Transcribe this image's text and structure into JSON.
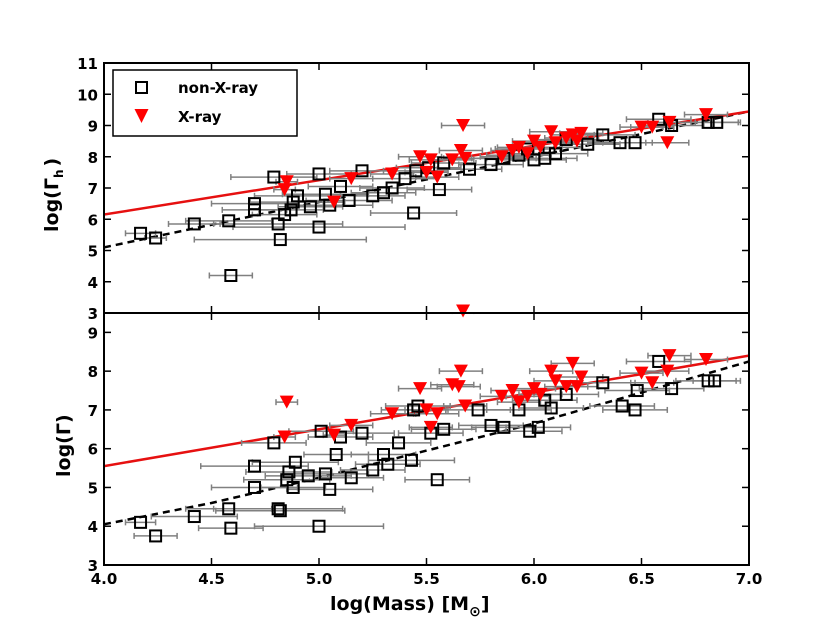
{
  "colors": {
    "xray": "#ff0000",
    "nonxray": "#000000",
    "errorbar": "#808080",
    "fit_nonxray": "#000000",
    "fit_xray": "#e61010"
  },
  "legend": {
    "placement": "upper-left of top panel",
    "entries": [
      {
        "label": "non-X-ray",
        "marker": "open-square"
      },
      {
        "label": "X-ray",
        "marker": "red-triangle-down"
      }
    ]
  },
  "chart_data": [
    {
      "type": "scatter",
      "panel": "top",
      "ylabel_main": "log(Γ",
      "ylabel_sub": "h",
      "ylabel_close": ")",
      "xlim": [
        4.0,
        7.0
      ],
      "ylim": [
        3,
        11
      ],
      "yticks": [
        "3",
        "4",
        "5",
        "6",
        "7",
        "8",
        "9",
        "10",
        "11"
      ],
      "fits": {
        "nonxray": {
          "x": [
            4.0,
            7.0
          ],
          "y": [
            5.1,
            9.45
          ],
          "style": "dashed"
        },
        "xray": {
          "x": [
            4.0,
            7.0
          ],
          "y": [
            6.15,
            9.45
          ],
          "style": "solid"
        }
      },
      "series": [
        {
          "name": "non-X-ray",
          "points": [
            {
              "x": 4.17,
              "y": 5.55,
              "xerr": 0.07
            },
            {
              "x": 4.24,
              "y": 5.4,
              "xerr": 0.05
            },
            {
              "x": 4.42,
              "y": 5.85,
              "xerr": 0.12
            },
            {
              "x": 4.59,
              "y": 4.2,
              "xerr": 0.1
            },
            {
              "x": 4.58,
              "y": 5.95,
              "xerr": 0.2
            },
            {
              "x": 4.7,
              "y": 6.3,
              "xerr": 0.15
            },
            {
              "x": 4.7,
              "y": 6.5,
              "xerr": 0.2
            },
            {
              "x": 4.79,
              "y": 7.35,
              "xerr": 0.2
            },
            {
              "x": 4.81,
              "y": 5.85,
              "xerr": 0.3
            },
            {
              "x": 4.82,
              "y": 5.35,
              "xerr": 0.4
            },
            {
              "x": 4.84,
              "y": 6.15,
              "xerr": 0.15
            },
            {
              "x": 4.87,
              "y": 6.3,
              "xerr": 0.15
            },
            {
              "x": 4.88,
              "y": 6.55,
              "xerr": 0.2
            },
            {
              "x": 4.9,
              "y": 6.75,
              "xerr": 0.2
            },
            {
              "x": 4.96,
              "y": 6.4,
              "xerr": 0.15
            },
            {
              "x": 5.0,
              "y": 5.75,
              "xerr": 0.4
            },
            {
              "x": 5.0,
              "y": 7.45,
              "xerr": 0.15
            },
            {
              "x": 5.03,
              "y": 6.8,
              "xerr": 0.2
            },
            {
              "x": 5.05,
              "y": 6.45,
              "xerr": 0.2
            },
            {
              "x": 5.1,
              "y": 7.05,
              "xerr": 0.15
            },
            {
              "x": 5.14,
              "y": 6.6,
              "xerr": 0.2
            },
            {
              "x": 5.2,
              "y": 7.55,
              "xerr": 0.15
            },
            {
              "x": 5.25,
              "y": 6.75,
              "xerr": 0.15
            },
            {
              "x": 5.3,
              "y": 6.85,
              "xerr": 0.15
            },
            {
              "x": 5.34,
              "y": 7.0,
              "xerr": 0.15
            },
            {
              "x": 5.4,
              "y": 7.3,
              "xerr": 0.15
            },
            {
              "x": 5.44,
              "y": 6.2,
              "xerr": 0.2
            },
            {
              "x": 5.45,
              "y": 7.55,
              "xerr": 0.15
            },
            {
              "x": 5.51,
              "y": 7.65,
              "xerr": 0.15
            },
            {
              "x": 5.56,
              "y": 6.95,
              "xerr": 0.15
            },
            {
              "x": 5.58,
              "y": 7.8,
              "xerr": 0.15
            },
            {
              "x": 5.7,
              "y": 7.6,
              "xerr": 0.15
            },
            {
              "x": 5.8,
              "y": 7.75,
              "xerr": 0.15
            },
            {
              "x": 5.86,
              "y": 7.95,
              "xerr": 0.15
            },
            {
              "x": 5.93,
              "y": 8.05,
              "xerr": 0.15
            },
            {
              "x": 5.97,
              "y": 8.25,
              "xerr": 0.15
            },
            {
              "x": 6.0,
              "y": 7.9,
              "xerr": 0.15
            },
            {
              "x": 6.05,
              "y": 7.95,
              "xerr": 0.15
            },
            {
              "x": 6.07,
              "y": 8.3,
              "xerr": 0.15
            },
            {
              "x": 6.1,
              "y": 8.1,
              "xerr": 0.15
            },
            {
              "x": 6.15,
              "y": 8.55,
              "xerr": 0.15
            },
            {
              "x": 6.25,
              "y": 8.4,
              "xerr": 0.15
            },
            {
              "x": 6.32,
              "y": 8.7,
              "xerr": 0.15
            },
            {
              "x": 6.4,
              "y": 8.45,
              "xerr": 0.15
            },
            {
              "x": 6.47,
              "y": 8.45,
              "xerr": 0.15
            },
            {
              "x": 6.58,
              "y": 9.2,
              "xerr": 0.15
            },
            {
              "x": 6.64,
              "y": 9.0,
              "xerr": 0.15
            },
            {
              "x": 6.81,
              "y": 9.1,
              "xerr": 0.15
            },
            {
              "x": 6.85,
              "y": 9.1,
              "xerr": 0.1
            }
          ]
        },
        {
          "name": "X-ray",
          "points": [
            {
              "x": 4.85,
              "y": 7.2,
              "xerr": 0.05
            },
            {
              "x": 4.84,
              "y": 6.95,
              "xerr": 0.05
            },
            {
              "x": 5.07,
              "y": 6.55,
              "xerr": 0.05
            },
            {
              "x": 5.15,
              "y": 7.3,
              "xerr": 0.1
            },
            {
              "x": 5.34,
              "y": 7.45,
              "xerr": 0.1
            },
            {
              "x": 5.47,
              "y": 8.0,
              "xerr": 0.1
            },
            {
              "x": 5.5,
              "y": 7.5,
              "xerr": 0.1
            },
            {
              "x": 5.52,
              "y": 7.9,
              "xerr": 0.1
            },
            {
              "x": 5.55,
              "y": 7.35,
              "xerr": 0.1
            },
            {
              "x": 5.62,
              "y": 7.9,
              "xerr": 0.1
            },
            {
              "x": 5.66,
              "y": 8.2,
              "xerr": 0.1
            },
            {
              "x": 5.68,
              "y": 7.95,
              "xerr": 0.1
            },
            {
              "x": 5.67,
              "y": 9.0,
              "xerr": 0.1
            },
            {
              "x": 5.85,
              "y": 8.0,
              "xerr": 0.1
            },
            {
              "x": 5.9,
              "y": 8.2,
              "xerr": 0.1
            },
            {
              "x": 5.93,
              "y": 8.3,
              "xerr": 0.1
            },
            {
              "x": 5.97,
              "y": 8.1,
              "xerr": 0.1
            },
            {
              "x": 6.0,
              "y": 8.5,
              "xerr": 0.1
            },
            {
              "x": 6.03,
              "y": 8.3,
              "xerr": 0.1
            },
            {
              "x": 6.08,
              "y": 8.8,
              "xerr": 0.1
            },
            {
              "x": 6.1,
              "y": 8.45,
              "xerr": 0.1
            },
            {
              "x": 6.15,
              "y": 8.6,
              "xerr": 0.1
            },
            {
              "x": 6.18,
              "y": 8.7,
              "xerr": 0.1
            },
            {
              "x": 6.2,
              "y": 8.5,
              "xerr": 0.1
            },
            {
              "x": 6.22,
              "y": 8.75,
              "xerr": 0.1
            },
            {
              "x": 6.5,
              "y": 8.95,
              "xerr": 0.1
            },
            {
              "x": 6.55,
              "y": 8.95,
              "xerr": 0.1
            },
            {
              "x": 6.62,
              "y": 8.45,
              "xerr": 0.1
            },
            {
              "x": 6.63,
              "y": 9.1,
              "xerr": 0.1
            },
            {
              "x": 6.8,
              "y": 9.35,
              "xerr": 0.1
            }
          ]
        }
      ]
    },
    {
      "type": "scatter",
      "panel": "bottom",
      "ylabel_main": "log(Γ)",
      "xlabel_main": "log(Mass) [M",
      "xlabel_sub": "⊙",
      "xlabel_close": "]",
      "xlim": [
        4.0,
        7.0
      ],
      "ylim": [
        3,
        9.5
      ],
      "xticks": [
        "4.0",
        "4.5",
        "5.0",
        "5.5",
        "6.0",
        "6.5",
        "7.0"
      ],
      "yticks": [
        "3",
        "4",
        "5",
        "6",
        "7",
        "8",
        "9"
      ],
      "fits": {
        "nonxray": {
          "x": [
            4.0,
            4.5,
            5.0,
            5.5,
            6.0,
            6.5,
            7.0
          ],
          "y": [
            4.05,
            4.6,
            5.25,
            5.95,
            6.65,
            7.45,
            8.25
          ],
          "style": "dashed"
        },
        "xray": {
          "x": [
            4.0,
            7.0
          ],
          "y": [
            5.55,
            8.4
          ],
          "style": "solid"
        }
      },
      "series": [
        {
          "name": "non-X-ray",
          "points": [
            {
              "x": 4.17,
              "y": 4.1,
              "xerr": 0.07
            },
            {
              "x": 4.24,
              "y": 3.75,
              "xerr": 0.1
            },
            {
              "x": 4.42,
              "y": 4.25,
              "xerr": 0.2
            },
            {
              "x": 4.58,
              "y": 4.45,
              "xerr": 0.2
            },
            {
              "x": 4.59,
              "y": 3.95,
              "xerr": 0.15
            },
            {
              "x": 4.7,
              "y": 5.55,
              "xerr": 0.25
            },
            {
              "x": 4.7,
              "y": 5.0,
              "xerr": 0.2
            },
            {
              "x": 4.79,
              "y": 6.15,
              "xerr": 0.15
            },
            {
              "x": 4.81,
              "y": 4.45,
              "xerr": 0.3
            },
            {
              "x": 4.82,
              "y": 4.4,
              "xerr": 0.3
            },
            {
              "x": 4.85,
              "y": 5.2,
              "xerr": 0.2
            },
            {
              "x": 4.86,
              "y": 5.4,
              "xerr": 0.2
            },
            {
              "x": 4.88,
              "y": 5.0,
              "xerr": 0.15
            },
            {
              "x": 4.89,
              "y": 5.65,
              "xerr": 0.2
            },
            {
              "x": 4.95,
              "y": 5.3,
              "xerr": 0.2
            },
            {
              "x": 5.0,
              "y": 4.0,
              "xerr": 0.3
            },
            {
              "x": 5.01,
              "y": 6.45,
              "xerr": 0.15
            },
            {
              "x": 5.03,
              "y": 5.35,
              "xerr": 0.2
            },
            {
              "x": 5.05,
              "y": 4.95,
              "xerr": 0.2
            },
            {
              "x": 5.08,
              "y": 5.85,
              "xerr": 0.15
            },
            {
              "x": 5.1,
              "y": 6.3,
              "xerr": 0.15
            },
            {
              "x": 5.15,
              "y": 5.25,
              "xerr": 0.15
            },
            {
              "x": 5.2,
              "y": 6.4,
              "xerr": 0.15
            },
            {
              "x": 5.25,
              "y": 5.45,
              "xerr": 0.15
            },
            {
              "x": 5.3,
              "y": 5.85,
              "xerr": 0.15
            },
            {
              "x": 5.32,
              "y": 5.6,
              "xerr": 0.15
            },
            {
              "x": 5.37,
              "y": 6.15,
              "xerr": 0.15
            },
            {
              "x": 5.43,
              "y": 5.7,
              "xerr": 0.2
            },
            {
              "x": 5.44,
              "y": 7.0,
              "xerr": 0.15
            },
            {
              "x": 5.46,
              "y": 7.1,
              "xerr": 0.15
            },
            {
              "x": 5.52,
              "y": 6.4,
              "xerr": 0.15
            },
            {
              "x": 5.55,
              "y": 5.2,
              "xerr": 0.15
            },
            {
              "x": 5.58,
              "y": 6.5,
              "xerr": 0.15
            },
            {
              "x": 5.74,
              "y": 7.0,
              "xerr": 0.15
            },
            {
              "x": 5.8,
              "y": 6.6,
              "xerr": 0.15
            },
            {
              "x": 5.86,
              "y": 6.55,
              "xerr": 0.15
            },
            {
              "x": 5.93,
              "y": 7.0,
              "xerr": 0.15
            },
            {
              "x": 5.98,
              "y": 6.45,
              "xerr": 0.15
            },
            {
              "x": 6.02,
              "y": 6.55,
              "xerr": 0.15
            },
            {
              "x": 6.05,
              "y": 7.25,
              "xerr": 0.15
            },
            {
              "x": 6.08,
              "y": 7.05,
              "xerr": 0.15
            },
            {
              "x": 6.15,
              "y": 7.4,
              "xerr": 0.15
            },
            {
              "x": 6.32,
              "y": 7.7,
              "xerr": 0.15
            },
            {
              "x": 6.41,
              "y": 7.1,
              "xerr": 0.15
            },
            {
              "x": 6.47,
              "y": 7.0,
              "xerr": 0.15
            },
            {
              "x": 6.48,
              "y": 7.5,
              "xerr": 0.15
            },
            {
              "x": 6.58,
              "y": 8.25,
              "xerr": 0.15
            },
            {
              "x": 6.64,
              "y": 7.55,
              "xerr": 0.15
            },
            {
              "x": 6.81,
              "y": 7.75,
              "xerr": 0.15
            },
            {
              "x": 6.84,
              "y": 7.75,
              "xerr": 0.1
            }
          ]
        },
        {
          "name": "X-ray",
          "points": [
            {
              "x": 4.85,
              "y": 7.2,
              "xerr": 0.05
            },
            {
              "x": 4.84,
              "y": 6.3,
              "xerr": 0.05
            },
            {
              "x": 5.07,
              "y": 6.35,
              "xerr": 0.05
            },
            {
              "x": 5.15,
              "y": 6.6,
              "xerr": 0.1
            },
            {
              "x": 5.34,
              "y": 6.9,
              "xerr": 0.1
            },
            {
              "x": 5.47,
              "y": 7.55,
              "xerr": 0.1
            },
            {
              "x": 5.5,
              "y": 7.0,
              "xerr": 0.1
            },
            {
              "x": 5.52,
              "y": 6.55,
              "xerr": 0.1
            },
            {
              "x": 5.55,
              "y": 6.9,
              "xerr": 0.1
            },
            {
              "x": 5.62,
              "y": 7.65,
              "xerr": 0.1
            },
            {
              "x": 5.65,
              "y": 7.6,
              "xerr": 0.1
            },
            {
              "x": 5.66,
              "y": 8.0,
              "xerr": 0.1
            },
            {
              "x": 5.68,
              "y": 7.1,
              "xerr": 0.1
            },
            {
              "x": 5.67,
              "y": 9.55,
              "xerr": 0.05
            },
            {
              "x": 5.85,
              "y": 7.35,
              "xerr": 0.1
            },
            {
              "x": 5.9,
              "y": 7.5,
              "xerr": 0.1
            },
            {
              "x": 5.93,
              "y": 7.2,
              "xerr": 0.1
            },
            {
              "x": 5.97,
              "y": 7.35,
              "xerr": 0.1
            },
            {
              "x": 6.0,
              "y": 7.55,
              "xerr": 0.1
            },
            {
              "x": 6.03,
              "y": 7.4,
              "xerr": 0.1
            },
            {
              "x": 6.08,
              "y": 8.0,
              "xerr": 0.1
            },
            {
              "x": 6.1,
              "y": 7.75,
              "xerr": 0.1
            },
            {
              "x": 6.15,
              "y": 7.6,
              "xerr": 0.1
            },
            {
              "x": 6.18,
              "y": 8.2,
              "xerr": 0.1
            },
            {
              "x": 6.2,
              "y": 7.6,
              "xerr": 0.1
            },
            {
              "x": 6.22,
              "y": 7.85,
              "xerr": 0.1
            },
            {
              "x": 6.5,
              "y": 7.95,
              "xerr": 0.1
            },
            {
              "x": 6.55,
              "y": 7.7,
              "xerr": 0.1
            },
            {
              "x": 6.62,
              "y": 8.0,
              "xerr": 0.1
            },
            {
              "x": 6.63,
              "y": 8.4,
              "xerr": 0.1
            },
            {
              "x": 6.8,
              "y": 8.3,
              "xerr": 0.1
            }
          ]
        }
      ]
    }
  ]
}
